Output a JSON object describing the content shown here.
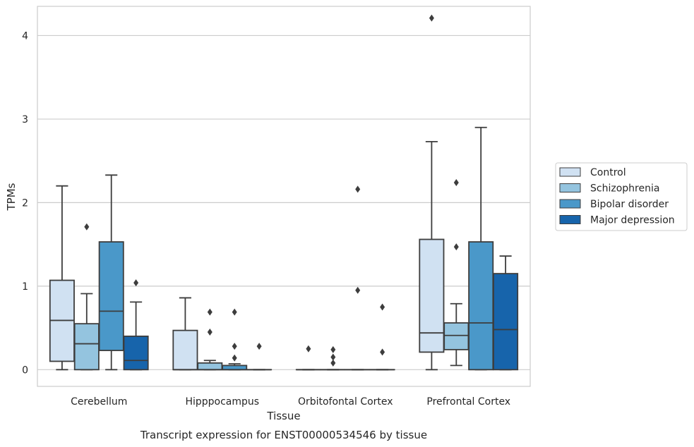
{
  "chart_data": {
    "type": "box",
    "title": "",
    "caption": "Transcript expression for ENST00000534546 by tissue",
    "xlabel": "Tissue",
    "ylabel": "TPMs",
    "ylim": [
      -0.2,
      4.35
    ],
    "yticks": [
      0,
      1,
      2,
      3,
      4
    ],
    "grid": "horizontal",
    "legend_position": "right",
    "categories": [
      "Cerebellum",
      "Hipppocampus",
      "Orbitofontal Cortex",
      "Prefrontal Cortex"
    ],
    "series": [
      {
        "name": "Control",
        "color": "#d0e1f2",
        "boxes": [
          {
            "q1": 0.1,
            "median": 0.59,
            "q3": 1.07,
            "whislo": 0.0,
            "whishi": 2.2,
            "fliers": []
          },
          {
            "q1": 0.0,
            "median": 0.0,
            "q3": 0.47,
            "whislo": 0.0,
            "whishi": 0.86,
            "fliers": []
          },
          {
            "q1": 0.0,
            "median": 0.0,
            "q3": 0.0,
            "whislo": 0.0,
            "whishi": 0.0,
            "fliers": [
              0.25
            ]
          },
          {
            "q1": 0.21,
            "median": 0.44,
            "q3": 1.56,
            "whislo": 0.0,
            "whishi": 2.73,
            "fliers": [
              4.21
            ]
          }
        ]
      },
      {
        "name": "Schizophrenia",
        "color": "#94c4df",
        "boxes": [
          {
            "q1": 0.0,
            "median": 0.31,
            "q3": 0.55,
            "whislo": 0.0,
            "whishi": 0.91,
            "fliers": [
              1.71
            ]
          },
          {
            "q1": 0.0,
            "median": 0.0,
            "q3": 0.08,
            "whislo": 0.0,
            "whishi": 0.11,
            "fliers": [
              0.45,
              0.69
            ]
          },
          {
            "q1": 0.0,
            "median": 0.0,
            "q3": 0.0,
            "whislo": 0.0,
            "whishi": 0.0,
            "fliers": [
              0.08,
              0.15,
              0.24
            ]
          },
          {
            "q1": 0.24,
            "median": 0.41,
            "q3": 0.56,
            "whislo": 0.05,
            "whishi": 0.79,
            "fliers": [
              1.47,
              2.24
            ]
          }
        ]
      },
      {
        "name": "Bipolar disorder",
        "color": "#4a98c9",
        "boxes": [
          {
            "q1": 0.23,
            "median": 0.7,
            "q3": 1.53,
            "whislo": 0.0,
            "whishi": 2.33,
            "fliers": []
          },
          {
            "q1": 0.0,
            "median": 0.0,
            "q3": 0.05,
            "whislo": 0.0,
            "whishi": 0.07,
            "fliers": [
              0.14,
              0.28,
              0.69
            ]
          },
          {
            "q1": 0.0,
            "median": 0.0,
            "q3": 0.0,
            "whislo": 0.0,
            "whishi": 0.0,
            "fliers": [
              0.95,
              2.16
            ]
          },
          {
            "q1": 0.0,
            "median": 0.56,
            "q3": 1.53,
            "whislo": 0.0,
            "whishi": 2.9,
            "fliers": []
          }
        ]
      },
      {
        "name": "Major depression",
        "color": "#1764ab",
        "boxes": [
          {
            "q1": 0.0,
            "median": 0.11,
            "q3": 0.4,
            "whislo": 0.0,
            "whishi": 0.81,
            "fliers": [
              1.04
            ]
          },
          {
            "q1": 0.0,
            "median": 0.0,
            "q3": 0.0,
            "whislo": 0.0,
            "whishi": 0.0,
            "fliers": [
              0.28
            ]
          },
          {
            "q1": 0.0,
            "median": 0.0,
            "q3": 0.0,
            "whislo": 0.0,
            "whishi": 0.0,
            "fliers": [
              0.21,
              0.75
            ]
          },
          {
            "q1": 0.0,
            "median": 0.48,
            "q3": 1.15,
            "whislo": 0.0,
            "whishi": 1.36,
            "fliers": []
          }
        ]
      }
    ]
  }
}
